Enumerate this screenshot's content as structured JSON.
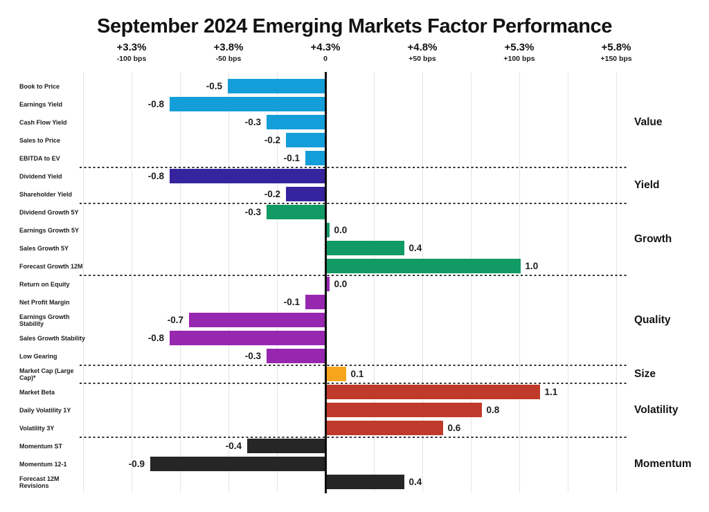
{
  "chart_data": {
    "type": "bar",
    "orientation": "horizontal",
    "title": "September 2024 Emerging Markets Factor Performance",
    "x_axis": {
      "grid": true,
      "gridline_step_bps": 25,
      "range": [
        -1.25,
        1.6
      ],
      "ticks": [
        {
          "pct": "+3.3%",
          "bps": "-100 bps",
          "value": -1.0
        },
        {
          "pct": "+3.8%",
          "bps": "-50 bps",
          "value": -0.5
        },
        {
          "pct": "+4.3%",
          "bps": "0",
          "value": 0.0
        },
        {
          "pct": "+4.8%",
          "bps": "+50 bps",
          "value": 0.5
        },
        {
          "pct": "+5.3%",
          "bps": "+100 bps",
          "value": 1.0
        },
        {
          "pct": "+5.8%",
          "bps": "+150 bps",
          "value": 1.5
        }
      ]
    },
    "groups": [
      {
        "name": "Value",
        "color": "#149ed9",
        "factors": [
          {
            "label": "Book to Price",
            "value": -0.5
          },
          {
            "label": "Earnings Yield",
            "value": -0.8
          },
          {
            "label": "Cash Flow Yield",
            "value": -0.3
          },
          {
            "label": "Sales to Price",
            "value": -0.2
          },
          {
            "label": "EBITDA to EV",
            "value": -0.1
          }
        ]
      },
      {
        "name": "Yield",
        "color": "#35249e",
        "factors": [
          {
            "label": "Dividend Yield",
            "value": -0.8
          },
          {
            "label": "Shareholder Yield",
            "value": -0.2
          }
        ]
      },
      {
        "name": "Growth",
        "color": "#119a64",
        "factors": [
          {
            "label": "Dividend Growth 5Y",
            "value": -0.3
          },
          {
            "label": "Earnings Growth 5Y",
            "value": 0.0
          },
          {
            "label": "Sales Growth 5Y",
            "value": 0.4
          },
          {
            "label": "Forecast Growth 12M",
            "value": 1.0
          }
        ]
      },
      {
        "name": "Quality",
        "color": "#9827b0",
        "factors": [
          {
            "label": "Return on Equity",
            "value": 0.0
          },
          {
            "label": "Net Profit Margin",
            "value": -0.1
          },
          {
            "label": "Earnings Growth Stability",
            "value": -0.7
          },
          {
            "label": "Sales Growth Stability",
            "value": -0.8
          },
          {
            "label": "Low Gearing",
            "value": -0.3
          }
        ]
      },
      {
        "name": "Size",
        "color": "#f7a61b",
        "factors": [
          {
            "label": "Market Cap (Large Cap)*",
            "value": 0.1
          }
        ]
      },
      {
        "name": "Volatility",
        "color": "#c03a2b",
        "factors": [
          {
            "label": "Market Beta",
            "value": 1.1
          },
          {
            "label": "Daily Volatility 1Y",
            "value": 0.8
          },
          {
            "label": "Volatility 3Y",
            "value": 0.6
          }
        ]
      },
      {
        "name": "Momentum",
        "color": "#262626",
        "factors": [
          {
            "label": "Momentum ST",
            "value": -0.4
          },
          {
            "label": "Momentum 12-1",
            "value": -0.9
          },
          {
            "label": "Forecast 12M Revisions",
            "value": 0.4
          }
        ]
      }
    ]
  }
}
